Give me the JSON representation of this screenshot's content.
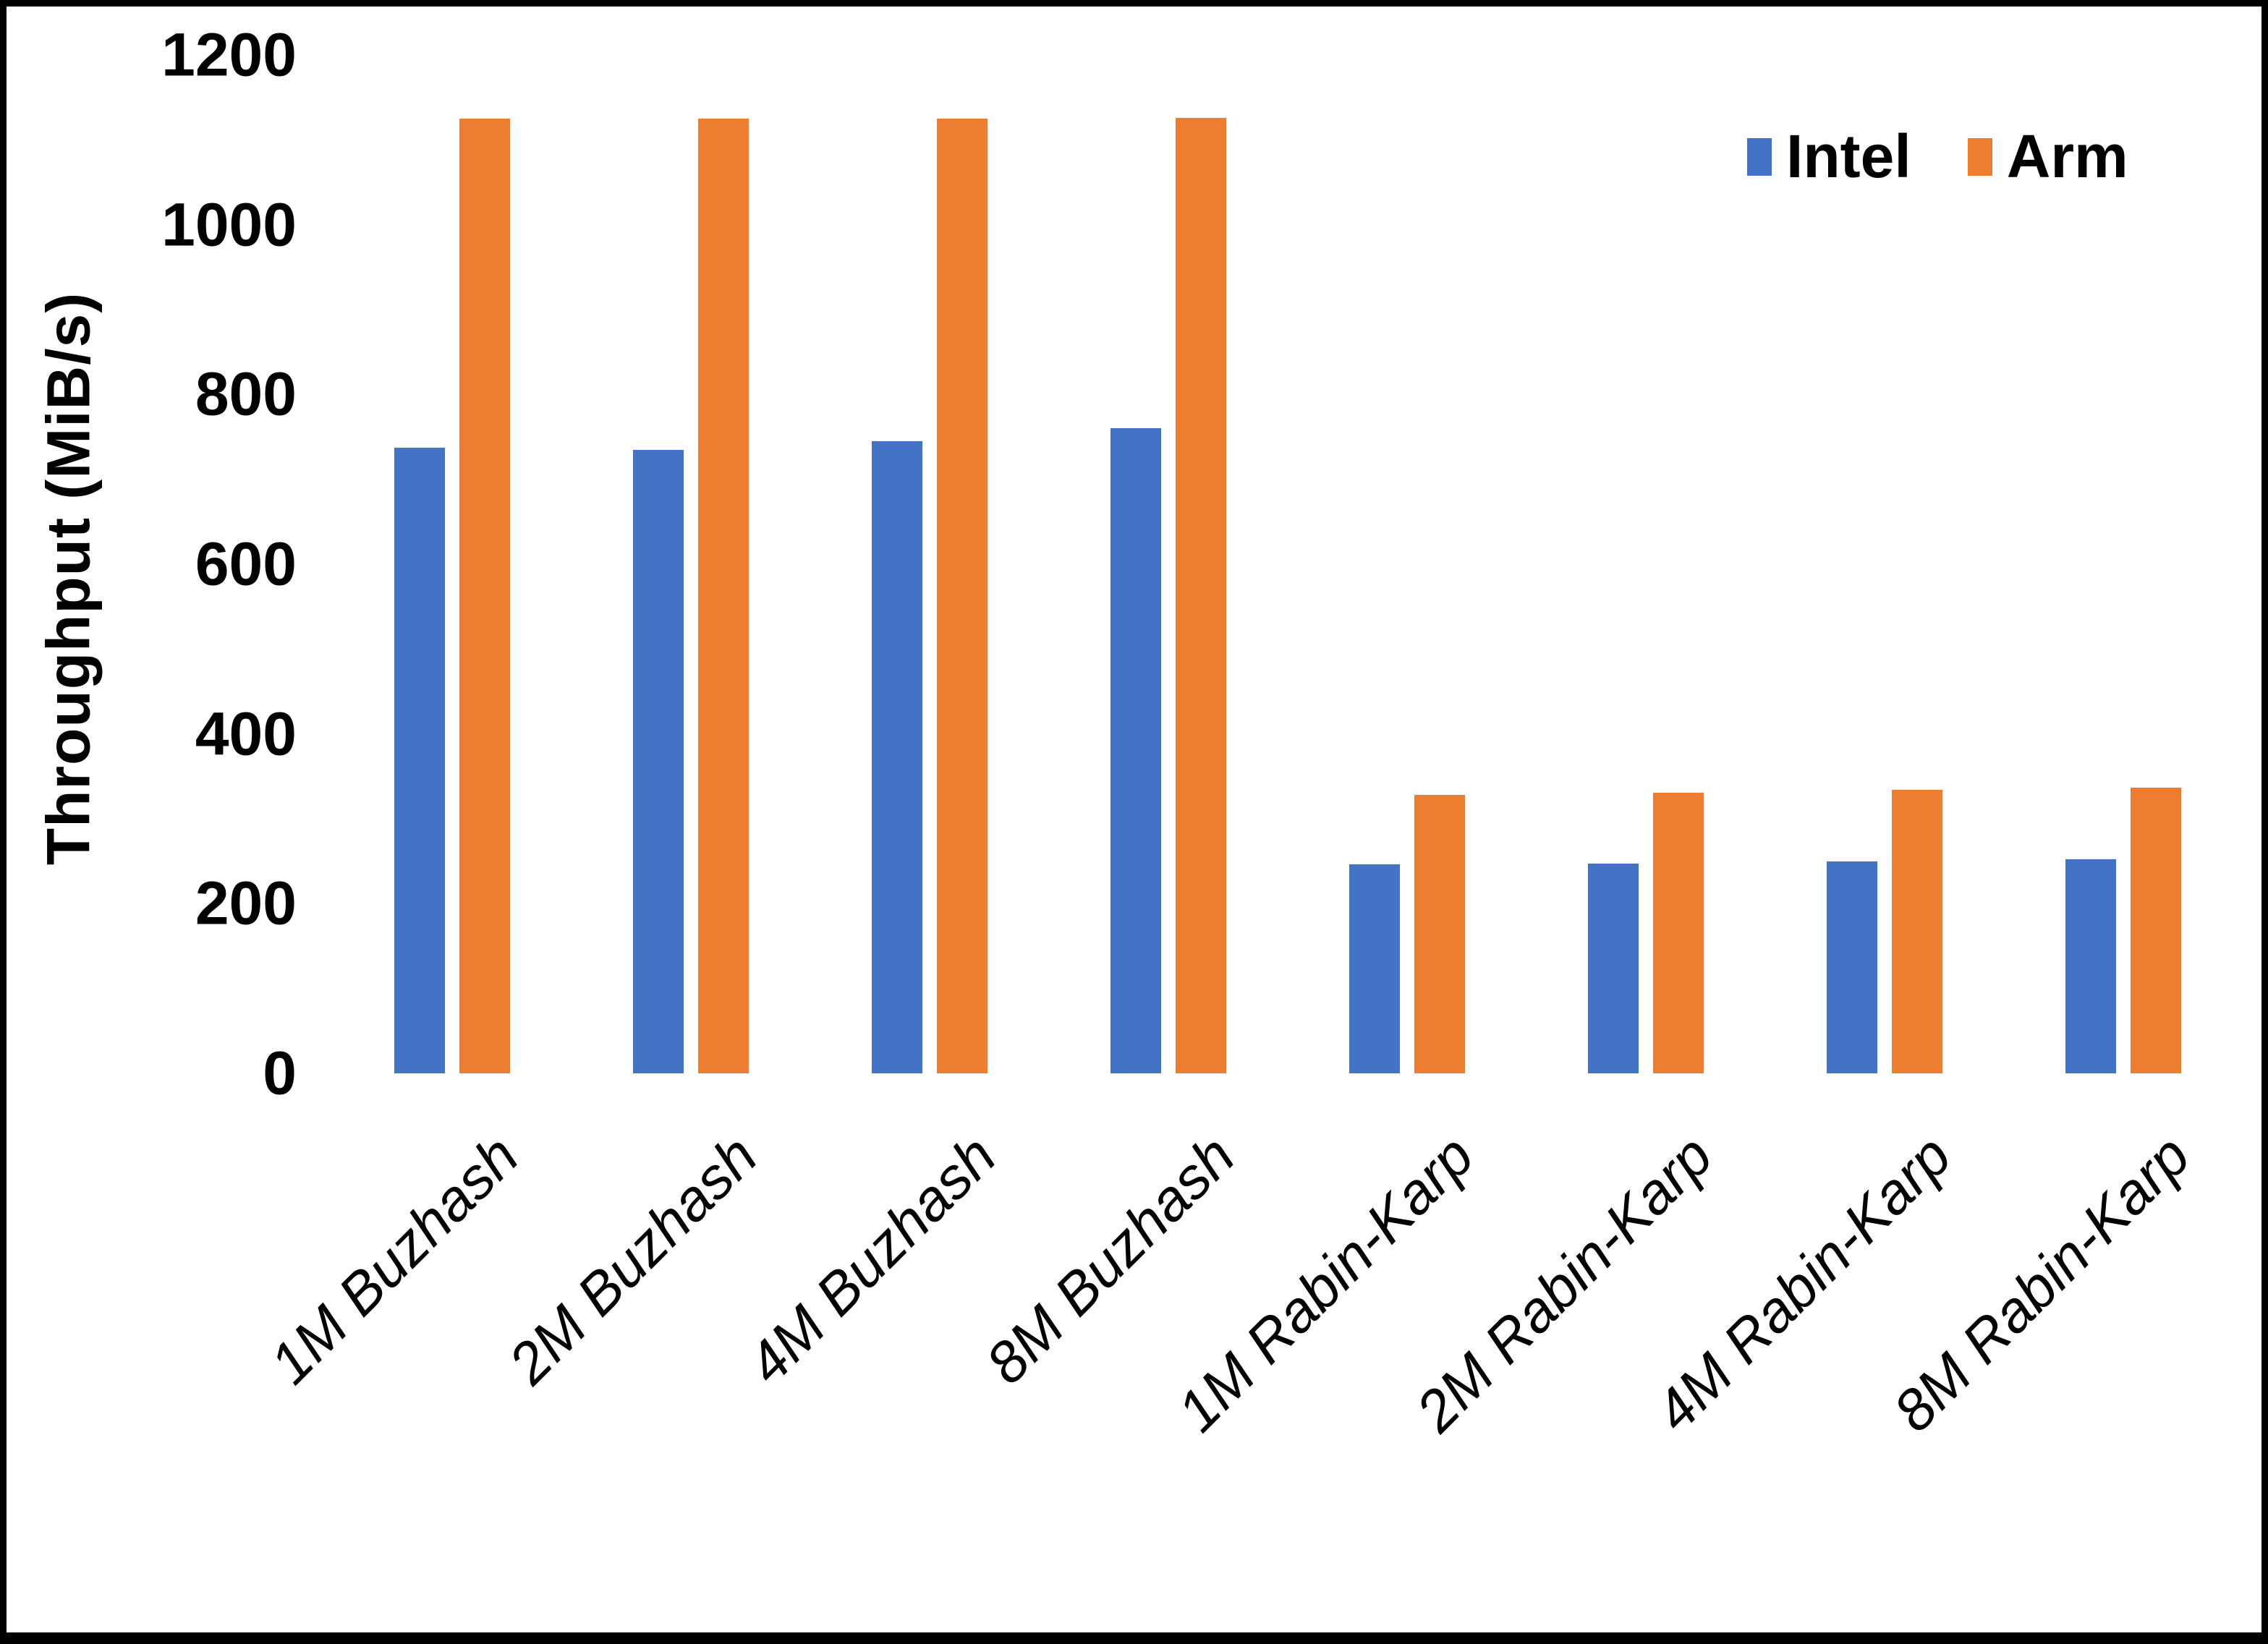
{
  "chart_data": {
    "type": "bar",
    "title": "",
    "ylabel": "Throughput (MiB/s)",
    "xlabel": "",
    "ylim": [
      0,
      1200
    ],
    "yticks": [
      0,
      200,
      400,
      600,
      800,
      1000,
      1200
    ],
    "grid": false,
    "legend_position": "top-right",
    "categories": [
      "1M Buzhash",
      "2M Buzhash",
      "4M Buzhash",
      "8M Buzhash",
      "1M Rabin-Karp",
      "2M Rabin-Karp",
      "4M Rabin-Karp",
      "8M Rabin-Karp"
    ],
    "series": [
      {
        "name": "Intel",
        "color": "#4472C4",
        "values": [
          737,
          735,
          745,
          760,
          246,
          247,
          250,
          252
        ]
      },
      {
        "name": "Arm",
        "color": "#ED7D31",
        "values": [
          1125,
          1125,
          1125,
          1126,
          328,
          331,
          334,
          337
        ]
      }
    ],
    "axis_line_color": "#d6d6d6",
    "background_color": "#ffffff"
  }
}
